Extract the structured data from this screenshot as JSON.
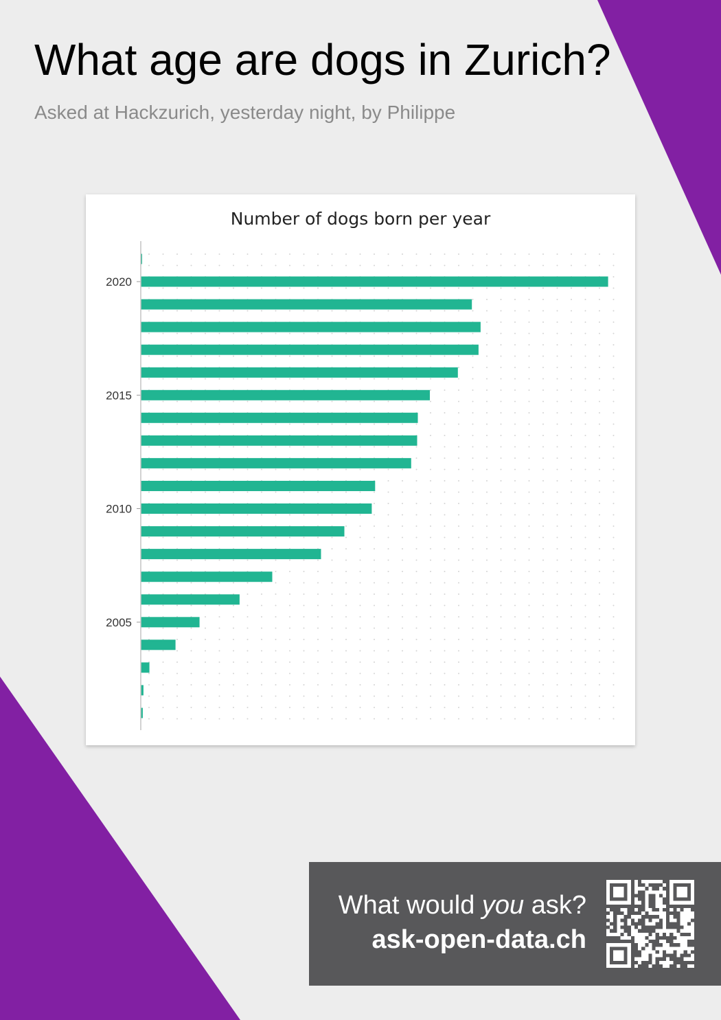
{
  "poster": {
    "title": "What age are dogs in Zurich?",
    "subtitle": "Asked at Hackzurich, yesterday night, by Philippe"
  },
  "chart_data": {
    "type": "bar",
    "orientation": "horizontal",
    "title": "Number of dogs born per year",
    "xlabel": "",
    "ylabel": "",
    "categories": [
      2021,
      2020,
      2019,
      2018,
      2017,
      2016,
      2015,
      2014,
      2013,
      2012,
      2011,
      2010,
      2009,
      2008,
      2007,
      2006,
      2005,
      2004,
      2003,
      2002,
      2001
    ],
    "y_tick_labels": [
      "2020",
      "2015",
      "2010",
      "2005"
    ],
    "values": [
      2,
      700,
      496,
      509,
      506,
      475,
      433,
      415,
      414,
      405,
      351,
      346,
      305,
      270,
      197,
      148,
      88,
      52,
      13,
      4,
      3
    ],
    "xlim": [
      0,
      720
    ],
    "bar_color": "#21b592",
    "grid": "dotted",
    "legend": "none"
  },
  "call_to_action": {
    "line1_before": "What would ",
    "line1_emphasis": "you",
    "line1_after": " ask?",
    "site": "ask-open-data.ch"
  },
  "colors": {
    "accent_purple": "#8220a3",
    "panel_gray": "#58585a",
    "background": "#ededed"
  },
  "icons": {
    "qr": "qr-code-icon"
  }
}
